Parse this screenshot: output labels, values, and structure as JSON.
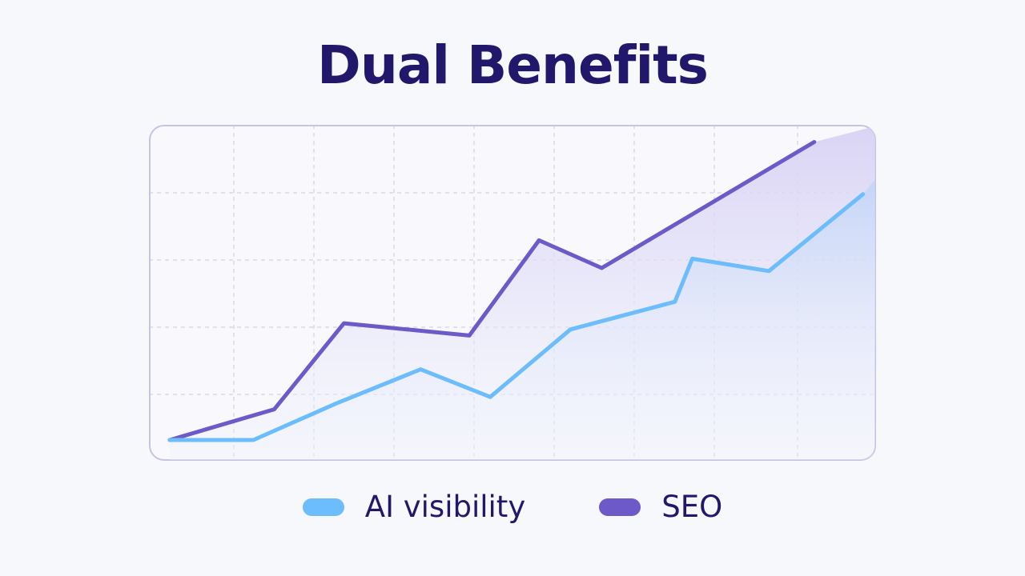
{
  "title": "Dual Benefits",
  "colors": {
    "background": "#f7f8fc",
    "title": "#22186b",
    "panel_border": "#c5c3e3",
    "grid": "#c9c9da",
    "ai_visibility": "#6cbdfb",
    "seo": "#6e59c9"
  },
  "chart_data": {
    "type": "line",
    "title": "Dual Benefits",
    "xlabel": "",
    "ylabel": "",
    "xlim": [
      0,
      10
    ],
    "ylim": [
      0,
      100
    ],
    "grid": true,
    "tick_labels": false,
    "legend_position": "bottom",
    "area_fill": true,
    "series": [
      {
        "name": "AI visibility",
        "color": "#6cbdfb",
        "x": [
          0,
          1.2,
          2.4,
          3.6,
          4.6,
          5.75,
          7.25,
          7.5,
          8.6,
          9.95
        ],
        "y": [
          0,
          0,
          12,
          23,
          14,
          36,
          45,
          59,
          55,
          80
        ]
      },
      {
        "name": "SEO",
        "color": "#6e59c9",
        "x": [
          0,
          1.5,
          2.5,
          4.3,
          5.3,
          6.2,
          9.25
        ],
        "y": [
          0,
          10,
          38,
          34,
          65,
          56,
          97
        ]
      }
    ]
  },
  "legend": [
    {
      "label": "AI visibility",
      "color": "#6cbdfb"
    },
    {
      "label": "SEO",
      "color": "#6e59c9"
    }
  ]
}
